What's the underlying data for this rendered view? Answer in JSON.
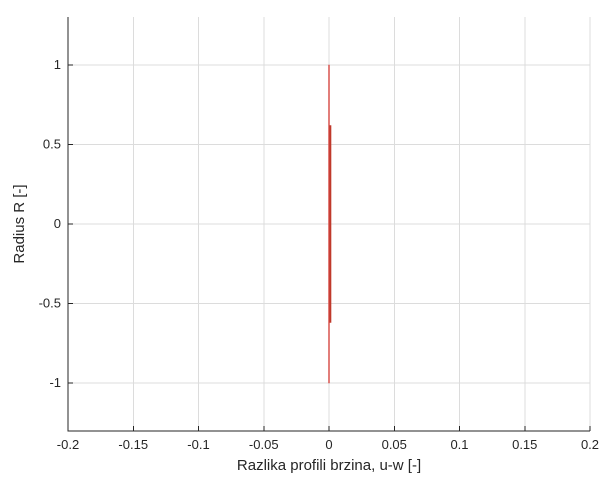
{
  "chart_data": {
    "type": "line",
    "title": "",
    "xlabel": "Razlika profili brzina, u-w [-]",
    "ylabel": "Radius R [-]",
    "xlim": [
      -0.2,
      0.2
    ],
    "ylim": [
      -1.3,
      1.3
    ],
    "xticks": [
      -0.2,
      -0.15,
      -0.1,
      -0.05,
      0,
      0.05,
      0.1,
      0.15,
      0.2
    ],
    "xtick_labels": [
      "-0.2",
      "-0.15",
      "-0.1",
      "-0.05",
      "0",
      "0.05",
      "0.1",
      "0.15",
      "0.2"
    ],
    "yticks": [
      -1,
      -0.5,
      0,
      0.5,
      1
    ],
    "ytick_labels": [
      "-1",
      "-0.5",
      "0",
      "0.5",
      "1"
    ],
    "grid": true,
    "series": [
      {
        "color": "#d9534f",
        "x": [
          0,
          0,
          0,
          0,
          0
        ],
        "y": [
          -1,
          -0.62,
          0,
          0.62,
          1
        ]
      },
      {
        "color": "#c0392b",
        "x": [
          0.001,
          0.001,
          0.001
        ],
        "y": [
          -0.62,
          0,
          0.62
        ]
      }
    ]
  }
}
